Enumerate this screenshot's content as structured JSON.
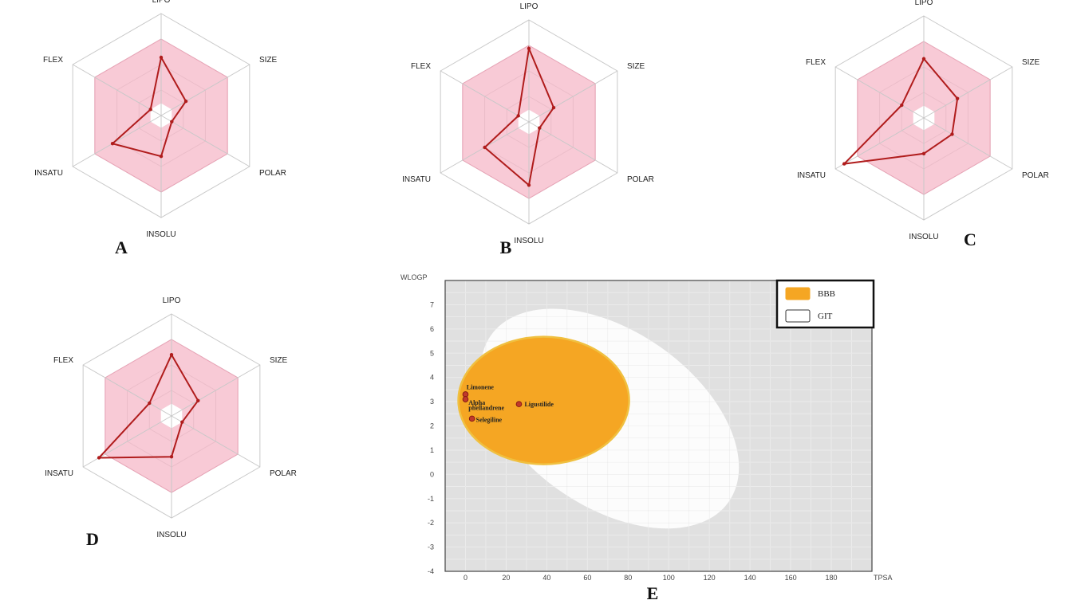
{
  "chart_data": [
    {
      "type": "radar",
      "panel": "A",
      "axes": [
        "LIPO",
        "SIZE",
        "POLAR",
        "INSOLU",
        "INSATU",
        "FLEX"
      ],
      "values": [
        0.57,
        0.28,
        0.12,
        0.4,
        0.55,
        0.12
      ],
      "optimal_range": [
        0.12,
        0.75
      ]
    },
    {
      "type": "radar",
      "panel": "B",
      "axes": [
        "LIPO",
        "SIZE",
        "POLAR",
        "INSOLU",
        "INSATU",
        "FLEX"
      ],
      "values": [
        0.72,
        0.28,
        0.12,
        0.62,
        0.5,
        0.12
      ],
      "optimal_range": [
        0.12,
        0.75
      ]
    },
    {
      "type": "radar",
      "panel": "C",
      "axes": [
        "LIPO",
        "SIZE",
        "POLAR",
        "INSOLU",
        "INSATU",
        "FLEX"
      ],
      "values": [
        0.58,
        0.38,
        0.32,
        0.35,
        0.9,
        0.25
      ],
      "optimal_range": [
        0.12,
        0.75
      ]
    },
    {
      "type": "radar",
      "panel": "D",
      "axes": [
        "LIPO",
        "SIZE",
        "POLAR",
        "INSOLU",
        "INSATU",
        "FLEX"
      ],
      "values": [
        0.6,
        0.3,
        0.12,
        0.4,
        0.82,
        0.25
      ],
      "optimal_range": [
        0.12,
        0.75
      ]
    },
    {
      "type": "scatter",
      "panel": "E",
      "xlabel": "TPSA",
      "ylabel": "WLOGP",
      "xlim": [
        -10,
        200
      ],
      "ylim": [
        -4,
        8
      ],
      "xticks": [
        0,
        20,
        40,
        60,
        80,
        100,
        120,
        140,
        160,
        180
      ],
      "yticks": [
        -4,
        -3,
        -2,
        -1,
        0,
        1,
        2,
        3,
        4,
        5,
        6,
        7
      ],
      "legend": [
        {
          "label": "BBB",
          "color": "#f39a1e"
        },
        {
          "label": "GIT",
          "color": "#ffffff"
        }
      ],
      "points": [
        {
          "name": "Limonene",
          "x": 0,
          "y": 3.3
        },
        {
          "name": "Alpha phellandrene",
          "x": 0,
          "y": 3.1
        },
        {
          "name": "Ligustilide",
          "x": 26.3,
          "y": 2.9
        },
        {
          "name": "Selegiline",
          "x": 3.2,
          "y": 2.3
        }
      ],
      "point_labels": [
        "Limonene",
        "Alpha",
        "phellandrene",
        "Ligustilide",
        "Selegiline"
      ]
    }
  ],
  "colors": {
    "radar_fill": "#f5b8c8",
    "radar_line": "#b01c1c",
    "plot_bg": "#e0e0e0",
    "bbb": "#f5a623",
    "bbb_edge": "#f0c040",
    "git": "#ffffff",
    "point": "#c0392b"
  }
}
